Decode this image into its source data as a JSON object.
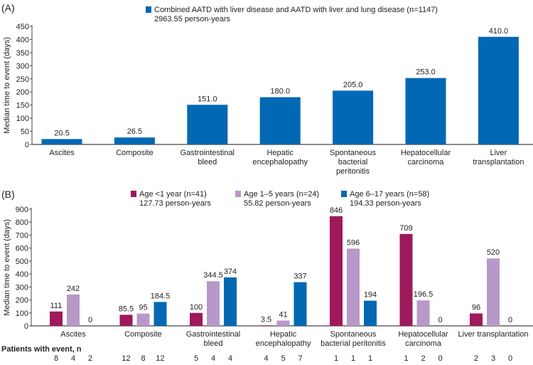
{
  "chart_data": [
    {
      "type": "bar",
      "panel_label": "(A)",
      "ylabel": "Median time to event (days)",
      "ylim": [
        0,
        450
      ],
      "yticks": [
        0,
        50,
        100,
        150,
        200,
        250,
        300,
        350,
        400,
        450
      ],
      "categories": [
        [
          "Ascites"
        ],
        [
          "Composite"
        ],
        [
          "Gastrointestinal",
          "bleed"
        ],
        [
          "Hepatic",
          "encephalopathy"
        ],
        [
          "Spontaneous",
          "bacterial",
          "peritonitis"
        ],
        [
          "Hepatocellular",
          "carcinoma"
        ],
        [
          "Liver",
          "transplantation"
        ]
      ],
      "series": [
        {
          "name": "Combined AATD with liver disease and AATD with liver and lung disease (n=1147)",
          "subtitle": "2963.55 person-years",
          "color": "#0068b5",
          "values": [
            20.5,
            26.5,
            151.0,
            180.0,
            205.0,
            253.0,
            410.0
          ],
          "labels": [
            "20.5",
            "26.5",
            "151.0",
            "180.0",
            "205.0",
            "253.0",
            "410.0"
          ]
        }
      ],
      "legend": "top-center"
    },
    {
      "type": "bar",
      "panel_label": "(B)",
      "ylabel": "Median time to event (days)",
      "ylim": [
        0,
        900
      ],
      "yticks": [
        0,
        100,
        200,
        300,
        400,
        500,
        600,
        700,
        800,
        900
      ],
      "categories": [
        [
          "Ascites"
        ],
        [
          "Composite"
        ],
        [
          "Gastrointestinal",
          "bleed"
        ],
        [
          "Hepatic",
          "encephalopathy"
        ],
        [
          "Spontaneous",
          "bacterial peritonitis"
        ],
        [
          "Hepatocellular",
          "carcinoma"
        ],
        [
          "Liver transplantation"
        ]
      ],
      "series": [
        {
          "name": "Age <1 year (n=41)",
          "subtitle": "127.73 person-years",
          "color": "#a0195a",
          "values": [
            111,
            85.5,
            100,
            3.5,
            846,
            709,
            96
          ],
          "labels": [
            "111",
            "85.5",
            "100",
            "3.5",
            "846",
            "709",
            "96"
          ],
          "patients": [
            "8",
            "12",
            "5",
            "4",
            "1",
            "1",
            "2"
          ]
        },
        {
          "name": "Age 1–5 years (n=24)",
          "subtitle": "55.82 person-years",
          "color": "#b898c9",
          "values": [
            242,
            95,
            344.5,
            41,
            596,
            196.5,
            520
          ],
          "labels": [
            "242",
            "95",
            "344.5",
            "41",
            "596",
            "196.5",
            "520"
          ],
          "patients": [
            "4",
            "8",
            "4",
            "5",
            "1",
            "2",
            "3"
          ]
        },
        {
          "name": "Age 6–17 years (n=58)",
          "subtitle": "194.33 person-years",
          "color": "#0068b5",
          "values": [
            0,
            184.5,
            374,
            337,
            194,
            0,
            0
          ],
          "labels": [
            "0",
            "184.5",
            "374",
            "337",
            "194",
            "0",
            "0"
          ],
          "patients": [
            "2",
            "12",
            "4",
            "7",
            "1",
            "0",
            "0"
          ]
        }
      ],
      "patients_label": "Patients with event, n",
      "legend": "top-center"
    }
  ]
}
